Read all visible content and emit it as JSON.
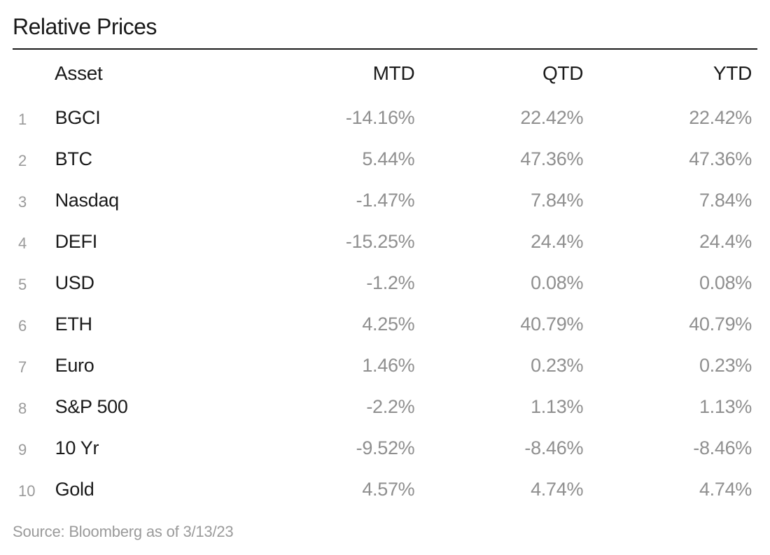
{
  "title": "Relative Prices",
  "columns": {
    "asset": "Asset",
    "mtd": "MTD",
    "qtd": "QTD",
    "ytd": "YTD"
  },
  "rows": [
    {
      "index": "1",
      "asset": "BGCI",
      "mtd": "-14.16%",
      "qtd": "22.42%",
      "ytd": "22.42%"
    },
    {
      "index": "2",
      "asset": "BTC",
      "mtd": "5.44%",
      "qtd": "47.36%",
      "ytd": "47.36%"
    },
    {
      "index": "3",
      "asset": "Nasdaq",
      "mtd": "-1.47%",
      "qtd": "7.84%",
      "ytd": "7.84%"
    },
    {
      "index": "4",
      "asset": "DEFI",
      "mtd": "-15.25%",
      "qtd": "24.4%",
      "ytd": "24.4%"
    },
    {
      "index": "5",
      "asset": "USD",
      "mtd": "-1.2%",
      "qtd": "0.08%",
      "ytd": "0.08%"
    },
    {
      "index": "6",
      "asset": "ETH",
      "mtd": "4.25%",
      "qtd": "40.79%",
      "ytd": "40.79%"
    },
    {
      "index": "7",
      "asset": "Euro",
      "mtd": "1.46%",
      "qtd": "0.23%",
      "ytd": "0.23%"
    },
    {
      "index": "8",
      "asset": "S&P 500",
      "mtd": "-2.2%",
      "qtd": "1.13%",
      "ytd": "1.13%"
    },
    {
      "index": "9",
      "asset": "10 Yr",
      "mtd": "-9.52%",
      "qtd": "-8.46%",
      "ytd": "-8.46%"
    },
    {
      "index": "10",
      "asset": "Gold",
      "mtd": "4.57%",
      "qtd": "4.74%",
      "ytd": "4.74%"
    }
  ],
  "source": "Source: Bloomberg as of 3/13/23",
  "styling": {
    "type": "table",
    "background_color": "#ffffff",
    "title_color": "#1a1a1a",
    "title_fontsize": 32,
    "header_color": "#1a1a1a",
    "header_fontsize": 28,
    "index_color": "#9a9a9a",
    "index_fontsize": 22,
    "asset_color": "#1a1a1a",
    "asset_fontsize": 27,
    "value_color": "#8f8f8f",
    "value_fontsize": 27,
    "source_color": "#9a9a9a",
    "source_fontsize": 22,
    "divider_color": "#1a1a1a",
    "column_alignment": {
      "asset": "left",
      "mtd": "right",
      "qtd": "right",
      "ytd": "right"
    }
  }
}
